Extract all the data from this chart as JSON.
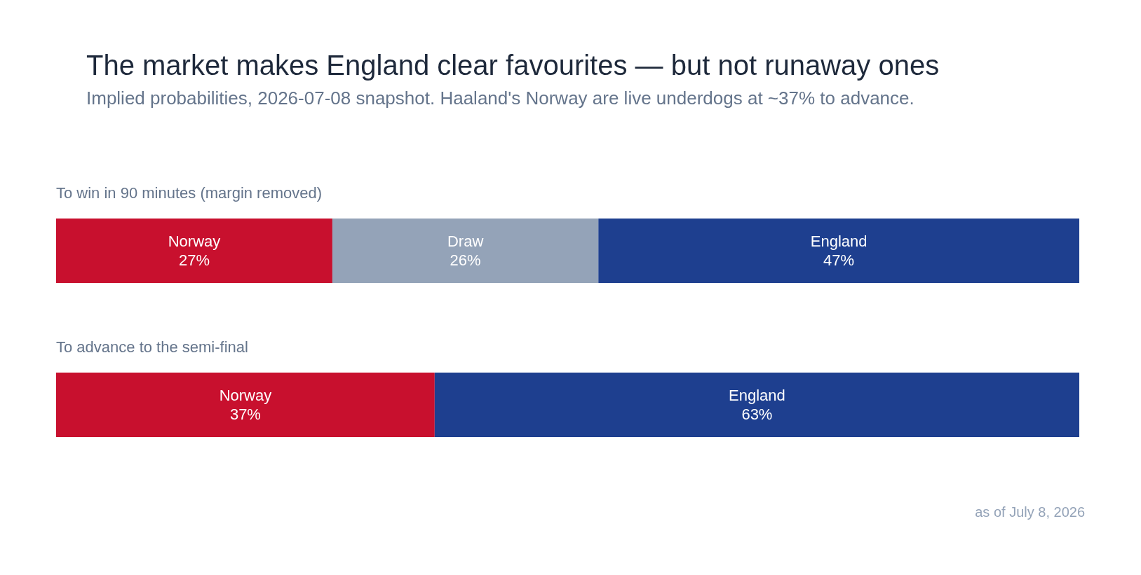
{
  "chart_data": {
    "type": "bar",
    "orientation": "horizontal",
    "stacked": true,
    "title": "The market makes England clear favourites — but not runaway ones",
    "subtitle": "Implied probabilities, 2026-07-08 snapshot. Haaland's Norway are live underdogs at ~37% to advance.",
    "categories": [
      "To win in 90 minutes (margin removed)",
      "To advance to the semi-final"
    ],
    "series": [
      {
        "name": "Norway",
        "color": "#c8102e",
        "values": [
          27,
          37
        ],
        "value_labels": [
          "27%",
          "37%"
        ]
      },
      {
        "name": "Draw",
        "color": "#94a3b8",
        "values": [
          26,
          null
        ],
        "value_labels": [
          "26%",
          null
        ]
      },
      {
        "name": "England",
        "color": "#1e3f8f",
        "values": [
          47,
          63
        ],
        "value_labels": [
          "47%",
          "63%"
        ]
      }
    ],
    "legend": false,
    "tick_labels": "y",
    "annotations": [
      "as of July 8, 2026"
    ]
  }
}
